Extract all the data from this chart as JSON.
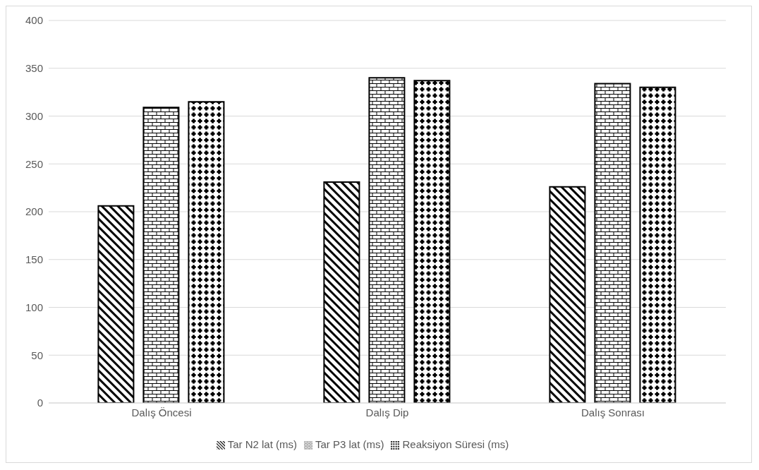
{
  "chart_data": {
    "type": "bar",
    "categories": [
      "Dalış Öncesi",
      "Dalış Dip",
      "Dalış Sonrası"
    ],
    "series": [
      {
        "name": "Tar N2 lat (ms)",
        "color": "#000000",
        "values": [
          206,
          231,
          226
        ]
      },
      {
        "name": "Tar P3 lat (ms)",
        "color": "#000000",
        "values": [
          309,
          340,
          334
        ]
      },
      {
        "name": "Reaksiyon Süresi (ms)",
        "color": "#000000",
        "values": [
          315,
          337,
          330
        ]
      }
    ],
    "ylim": [
      0,
      400
    ],
    "yticks": [
      0,
      50,
      100,
      150,
      200,
      250,
      300,
      350,
      400
    ],
    "grid": "y",
    "legend": "bottom"
  }
}
